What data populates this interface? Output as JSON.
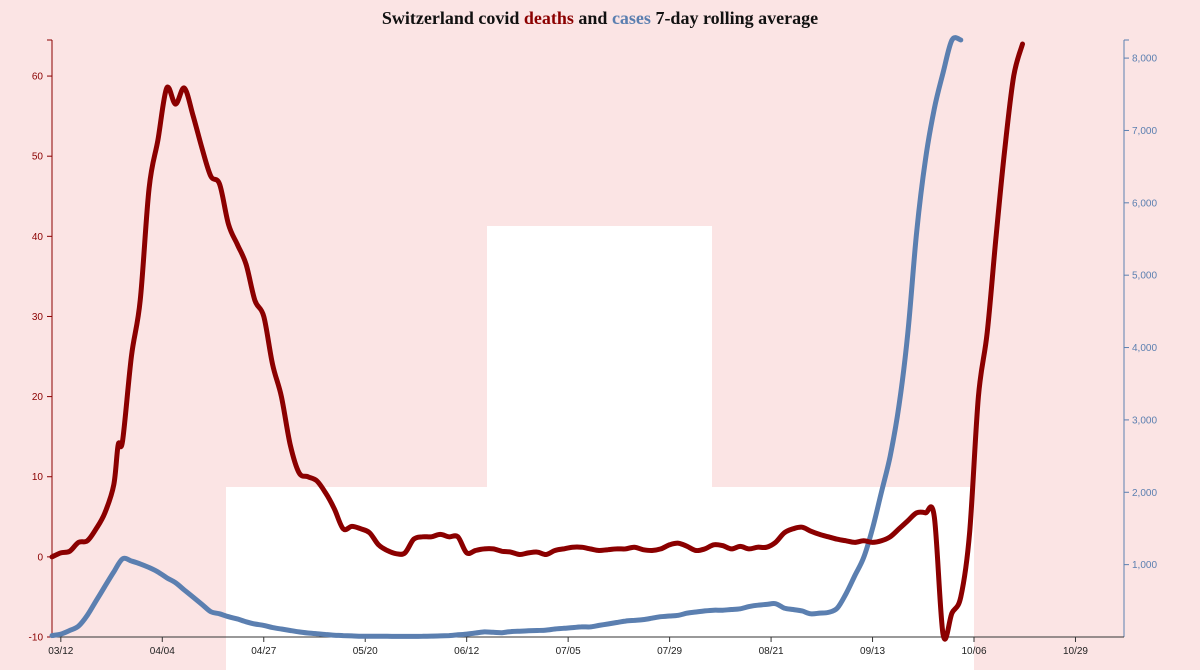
{
  "title": {
    "part1": "Switzerland covid",
    "part2": "deaths",
    "part3": "and",
    "part4": "cases",
    "part5": "7-day rolling average"
  },
  "colors": {
    "deaths": "#8b0000",
    "cases": "#5b7fb0",
    "background": "#fbe4e4",
    "highlight": "#ffffff"
  },
  "chart_data": {
    "type": "line",
    "title": "Switzerland covid deaths and cases 7-day rolling average",
    "x_tick_labels": [
      "03/12",
      "04/04",
      "04/27",
      "05/20",
      "06/12",
      "07/05",
      "07/29",
      "08/21",
      "09/13",
      "10/06",
      "10/29"
    ],
    "x_tick_days": [
      2,
      25,
      48,
      71,
      94,
      117,
      140,
      163,
      186,
      209,
      232
    ],
    "x_domain": [
      0,
      243
    ],
    "y_left": {
      "ticks": [
        -10,
        0,
        10,
        20,
        30,
        40,
        50,
        60
      ],
      "domain": [
        -10,
        64.5
      ]
    },
    "y_right": {
      "ticks": [
        "1,000",
        "2,000",
        "3,000",
        "4,000",
        "5,000",
        "6,000",
        "7,000",
        "8,000"
      ],
      "tick_values": [
        1000,
        2000,
        3000,
        4000,
        5000,
        6000,
        7000,
        8000
      ],
      "domain": [
        0,
        8250
      ]
    },
    "series": [
      {
        "name": "deaths",
        "axis": "left",
        "points": [
          [
            0,
            0
          ],
          [
            2,
            0.5
          ],
          [
            4,
            0.7
          ],
          [
            6,
            1.8
          ],
          [
            8,
            2
          ],
          [
            10,
            3.5
          ],
          [
            12,
            5.5
          ],
          [
            14,
            9
          ],
          [
            15,
            14
          ],
          [
            16,
            14.5
          ],
          [
            18,
            25
          ],
          [
            20,
            32
          ],
          [
            22,
            46
          ],
          [
            24,
            52
          ],
          [
            26,
            58.5
          ],
          [
            28,
            56.5
          ],
          [
            30,
            58.5
          ],
          [
            32,
            55
          ],
          [
            34,
            51
          ],
          [
            36,
            47.5
          ],
          [
            38,
            46.5
          ],
          [
            40,
            41.5
          ],
          [
            42,
            39
          ],
          [
            44,
            36.5
          ],
          [
            46,
            32
          ],
          [
            48,
            30
          ],
          [
            50,
            24
          ],
          [
            52,
            20
          ],
          [
            54,
            14
          ],
          [
            56,
            10.5
          ],
          [
            58,
            10
          ],
          [
            60,
            9.5
          ],
          [
            62,
            8
          ],
          [
            64,
            6
          ],
          [
            66,
            3.5
          ],
          [
            68,
            3.8
          ],
          [
            70,
            3.5
          ],
          [
            72,
            3
          ],
          [
            74,
            1.5
          ],
          [
            76,
            0.8
          ],
          [
            78,
            0.4
          ],
          [
            80,
            0.5
          ],
          [
            82,
            2.2
          ],
          [
            84,
            2.5
          ],
          [
            86,
            2.5
          ],
          [
            88,
            2.8
          ],
          [
            90,
            2.5
          ],
          [
            92,
            2.5
          ],
          [
            94,
            0.5
          ],
          [
            96,
            0.8
          ],
          [
            98,
            1
          ],
          [
            100,
            1
          ],
          [
            102,
            0.7
          ],
          [
            104,
            0.6
          ],
          [
            106,
            0.3
          ],
          [
            108,
            0.5
          ],
          [
            110,
            0.6
          ],
          [
            112,
            0.3
          ],
          [
            114,
            0.8
          ],
          [
            116,
            1
          ],
          [
            118,
            1.2
          ],
          [
            120,
            1.2
          ],
          [
            122,
            1
          ],
          [
            124,
            0.8
          ],
          [
            126,
            0.9
          ],
          [
            128,
            1
          ],
          [
            130,
            1
          ],
          [
            132,
            1.2
          ],
          [
            134,
            0.9
          ],
          [
            136,
            0.8
          ],
          [
            138,
            1
          ],
          [
            140,
            1.5
          ],
          [
            142,
            1.7
          ],
          [
            144,
            1.3
          ],
          [
            146,
            0.8
          ],
          [
            148,
            1
          ],
          [
            150,
            1.5
          ],
          [
            152,
            1.4
          ],
          [
            154,
            1
          ],
          [
            156,
            1.3
          ],
          [
            158,
            1
          ],
          [
            160,
            1.2
          ],
          [
            162,
            1.2
          ],
          [
            164,
            1.8
          ],
          [
            166,
            3
          ],
          [
            168,
            3.5
          ],
          [
            170,
            3.7
          ],
          [
            172,
            3.2
          ],
          [
            174,
            2.8
          ],
          [
            176,
            2.5
          ],
          [
            178,
            2.2
          ],
          [
            180,
            2
          ],
          [
            182,
            1.8
          ],
          [
            184,
            2
          ],
          [
            186,
            1.8
          ],
          [
            188,
            2
          ],
          [
            190,
            2.5
          ],
          [
            192,
            3.5
          ],
          [
            194,
            4.5
          ],
          [
            196,
            5.5
          ],
          [
            198,
            5.5
          ],
          [
            200,
            5
          ],
          [
            202,
            -9.7
          ],
          [
            204,
            -7
          ],
          [
            206,
            -5
          ],
          [
            208,
            3
          ],
          [
            210,
            20
          ],
          [
            212,
            28
          ],
          [
            214,
            40
          ],
          [
            216,
            51
          ],
          [
            218,
            60
          ],
          [
            220,
            64
          ]
        ]
      },
      {
        "name": "cases",
        "axis": "right",
        "points": [
          [
            0,
            20
          ],
          [
            2,
            40
          ],
          [
            4,
            90
          ],
          [
            6,
            150
          ],
          [
            8,
            300
          ],
          [
            10,
            500
          ],
          [
            12,
            700
          ],
          [
            14,
            900
          ],
          [
            16,
            1080
          ],
          [
            18,
            1050
          ],
          [
            20,
            1010
          ],
          [
            22,
            960
          ],
          [
            24,
            900
          ],
          [
            26,
            820
          ],
          [
            28,
            750
          ],
          [
            30,
            650
          ],
          [
            32,
            550
          ],
          [
            34,
            450
          ],
          [
            36,
            350
          ],
          [
            38,
            320
          ],
          [
            40,
            280
          ],
          [
            42,
            250
          ],
          [
            44,
            210
          ],
          [
            46,
            180
          ],
          [
            48,
            160
          ],
          [
            50,
            130
          ],
          [
            52,
            110
          ],
          [
            54,
            90
          ],
          [
            56,
            70
          ],
          [
            58,
            55
          ],
          [
            60,
            45
          ],
          [
            62,
            35
          ],
          [
            64,
            25
          ],
          [
            66,
            20
          ],
          [
            68,
            15
          ],
          [
            70,
            10
          ],
          [
            72,
            10
          ],
          [
            74,
            10
          ],
          [
            76,
            10
          ],
          [
            78,
            8
          ],
          [
            80,
            8
          ],
          [
            82,
            8
          ],
          [
            84,
            10
          ],
          [
            86,
            12
          ],
          [
            88,
            15
          ],
          [
            90,
            20
          ],
          [
            92,
            30
          ],
          [
            94,
            40
          ],
          [
            96,
            55
          ],
          [
            98,
            70
          ],
          [
            100,
            65
          ],
          [
            102,
            60
          ],
          [
            104,
            75
          ],
          [
            106,
            80
          ],
          [
            108,
            85
          ],
          [
            110,
            90
          ],
          [
            112,
            95
          ],
          [
            114,
            110
          ],
          [
            116,
            120
          ],
          [
            118,
            130
          ],
          [
            120,
            140
          ],
          [
            122,
            140
          ],
          [
            124,
            160
          ],
          [
            126,
            180
          ],
          [
            128,
            200
          ],
          [
            130,
            220
          ],
          [
            132,
            230
          ],
          [
            134,
            240
          ],
          [
            136,
            260
          ],
          [
            138,
            280
          ],
          [
            140,
            290
          ],
          [
            142,
            300
          ],
          [
            144,
            330
          ],
          [
            146,
            345
          ],
          [
            148,
            360
          ],
          [
            150,
            370
          ],
          [
            152,
            370
          ],
          [
            154,
            380
          ],
          [
            156,
            390
          ],
          [
            158,
            420
          ],
          [
            160,
            440
          ],
          [
            162,
            450
          ],
          [
            164,
            460
          ],
          [
            166,
            400
          ],
          [
            168,
            380
          ],
          [
            170,
            360
          ],
          [
            172,
            320
          ],
          [
            174,
            330
          ],
          [
            176,
            340
          ],
          [
            178,
            400
          ],
          [
            180,
            600
          ],
          [
            182,
            850
          ],
          [
            184,
            1100
          ],
          [
            186,
            1500
          ],
          [
            188,
            2000
          ],
          [
            190,
            2500
          ],
          [
            192,
            3200
          ],
          [
            194,
            4200
          ],
          [
            196,
            5600
          ],
          [
            198,
            6600
          ],
          [
            200,
            7300
          ],
          [
            202,
            7800
          ],
          [
            204,
            8250
          ],
          [
            206,
            8300
          ]
        ]
      }
    ]
  }
}
